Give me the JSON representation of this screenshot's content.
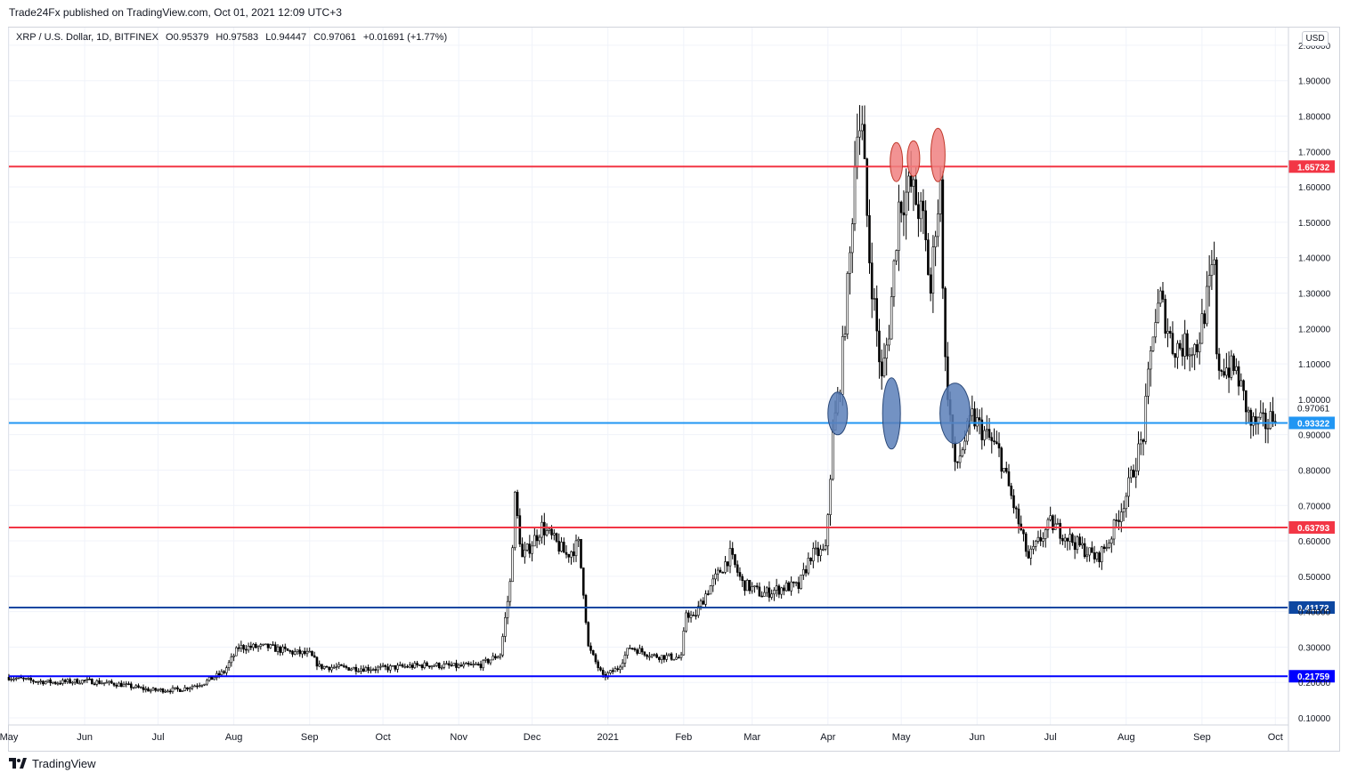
{
  "publisher_line": "Trade24Fx published on TradingView.com, Oct 01, 2021 12:09 UTC+3",
  "legend": {
    "symbol": "XRP / U.S. Dollar, 1D, BITFINEX",
    "open": "O0.95379",
    "high": "H0.97583",
    "low": "L0.94447",
    "close": "C0.97061",
    "change": "+0.01691 (+1.77%)"
  },
  "currency_badge": "USD",
  "footer_brand": "TradingView",
  "icons": [
    "tradingview-logo-icon"
  ],
  "colors": {
    "red_level": "#f23645",
    "light_blue_level": "#2196f3",
    "dark_blue_level": "#0d47a1",
    "blue_level": "#0000ff",
    "red_marker": "#f08080",
    "blue_marker": "#5b7fb8",
    "candle": "#000000"
  },
  "chart_data": {
    "type": "candlestick",
    "symbol": "XRP / U.S. Dollar",
    "interval": "1D",
    "exchange": "BITFINEX",
    "x_range": [
      "2020-05-01",
      "2021-10-06"
    ],
    "ylim": [
      0.08,
      2.05
    ],
    "y_ticks": [
      0.1,
      0.2,
      0.3,
      0.4,
      0.5,
      0.6,
      0.7,
      0.8,
      0.9,
      1.0,
      1.1,
      1.2,
      1.3,
      1.4,
      1.5,
      1.6,
      1.7,
      1.8,
      1.9,
      2.0
    ],
    "y_tick_labels": [
      "0.10000",
      "0.20000",
      "0.30000",
      "0.40000",
      "0.50000",
      "0.60000",
      "0.70000",
      "0.80000",
      "0.90000",
      "1.00000",
      "1.10000",
      "1.20000",
      "1.30000",
      "1.40000",
      "1.50000",
      "1.60000",
      "1.70000",
      "1.80000",
      "1.90000",
      "2.00000"
    ],
    "x_tick_labels": [
      {
        "date": "2020-05-01",
        "label": "May"
      },
      {
        "date": "2020-06-01",
        "label": "Jun"
      },
      {
        "date": "2020-07-01",
        "label": "Jul"
      },
      {
        "date": "2020-08-01",
        "label": "Aug"
      },
      {
        "date": "2020-09-01",
        "label": "Sep"
      },
      {
        "date": "2020-10-01",
        "label": "Oct"
      },
      {
        "date": "2020-11-01",
        "label": "Nov"
      },
      {
        "date": "2020-12-01",
        "label": "Dec"
      },
      {
        "date": "2021-01-01",
        "label": "2021"
      },
      {
        "date": "2021-02-01",
        "label": "Feb"
      },
      {
        "date": "2021-03-01",
        "label": "Mar"
      },
      {
        "date": "2021-04-01",
        "label": "Apr"
      },
      {
        "date": "2021-05-01",
        "label": "May"
      },
      {
        "date": "2021-06-01",
        "label": "Jun"
      },
      {
        "date": "2021-07-01",
        "label": "Jul"
      },
      {
        "date": "2021-08-01",
        "label": "Aug"
      },
      {
        "date": "2021-09-01",
        "label": "Sep"
      },
      {
        "date": "2021-10-01",
        "label": "Oct"
      }
    ],
    "grid": true,
    "last_price": {
      "value": 0.97061,
      "label": "0.97061"
    },
    "horizontal_levels": [
      {
        "value": 1.65732,
        "label": "1.65732",
        "color": "#f23645"
      },
      {
        "value": 0.93322,
        "label": "0.93322",
        "color": "#2196f3"
      },
      {
        "value": 0.63793,
        "label": "0.63793",
        "color": "#f23645"
      },
      {
        "value": 0.41172,
        "label": "0.41172",
        "color": "#0d47a1"
      },
      {
        "value": 0.21759,
        "label": "0.21759",
        "color": "#0000ff"
      }
    ],
    "price_path": [
      [
        "2020-05-01",
        0.215
      ],
      [
        "2020-05-10",
        0.205
      ],
      [
        "2020-05-20",
        0.2
      ],
      [
        "2020-06-01",
        0.205
      ],
      [
        "2020-06-15",
        0.195
      ],
      [
        "2020-06-28",
        0.178
      ],
      [
        "2020-07-10",
        0.18
      ],
      [
        "2020-07-20",
        0.2
      ],
      [
        "2020-07-28",
        0.23
      ],
      [
        "2020-08-03",
        0.3
      ],
      [
        "2020-08-15",
        0.3
      ],
      [
        "2020-08-25",
        0.285
      ],
      [
        "2020-09-01",
        0.28
      ],
      [
        "2020-09-05",
        0.245
      ],
      [
        "2020-09-20",
        0.24
      ],
      [
        "2020-10-01",
        0.24
      ],
      [
        "2020-10-20",
        0.25
      ],
      [
        "2020-11-01",
        0.245
      ],
      [
        "2020-11-10",
        0.25
      ],
      [
        "2020-11-18",
        0.28
      ],
      [
        "2020-11-22",
        0.48
      ],
      [
        "2020-11-24",
        0.72
      ],
      [
        "2020-11-27",
        0.55
      ],
      [
        "2020-12-05",
        0.64
      ],
      [
        "2020-12-15",
        0.56
      ],
      [
        "2020-12-20",
        0.59
      ],
      [
        "2020-12-22",
        0.46
      ],
      [
        "2020-12-24",
        0.3
      ],
      [
        "2020-12-30",
        0.215
      ],
      [
        "2021-01-05",
        0.24
      ],
      [
        "2021-01-10",
        0.3
      ],
      [
        "2021-01-20",
        0.275
      ],
      [
        "2021-01-31",
        0.27
      ],
      [
        "2021-02-02",
        0.4
      ],
      [
        "2021-02-05",
        0.38
      ],
      [
        "2021-02-10",
        0.45
      ],
      [
        "2021-02-20",
        0.56
      ],
      [
        "2021-02-25",
        0.48
      ],
      [
        "2021-03-05",
        0.45
      ],
      [
        "2021-03-15",
        0.47
      ],
      [
        "2021-03-20",
        0.47
      ],
      [
        "2021-03-25",
        0.56
      ],
      [
        "2021-03-31",
        0.57
      ],
      [
        "2021-04-03",
        0.9
      ],
      [
        "2021-04-06",
        1.05
      ],
      [
        "2021-04-10",
        1.4
      ],
      [
        "2021-04-13",
        1.8
      ],
      [
        "2021-04-15",
        1.75
      ],
      [
        "2021-04-18",
        1.4
      ],
      [
        "2021-04-23",
        1.05
      ],
      [
        "2021-04-26",
        1.2
      ],
      [
        "2021-04-30",
        1.55
      ],
      [
        "2021-05-05",
        1.6
      ],
      [
        "2021-05-10",
        1.5
      ],
      [
        "2021-05-13",
        1.3
      ],
      [
        "2021-05-15",
        1.5
      ],
      [
        "2021-05-17",
        1.6
      ],
      [
        "2021-05-19",
        1.1
      ],
      [
        "2021-05-23",
        0.8
      ],
      [
        "2021-05-30",
        0.95
      ],
      [
        "2021-06-10",
        0.85
      ],
      [
        "2021-06-20",
        0.6
      ],
      [
        "2021-06-22",
        0.55
      ],
      [
        "2021-07-01",
        0.65
      ],
      [
        "2021-07-10",
        0.6
      ],
      [
        "2021-07-20",
        0.55
      ],
      [
        "2021-07-25",
        0.6
      ],
      [
        "2021-08-01",
        0.73
      ],
      [
        "2021-08-08",
        0.9
      ],
      [
        "2021-08-12",
        1.2
      ],
      [
        "2021-08-15",
        1.28
      ],
      [
        "2021-08-20",
        1.15
      ],
      [
        "2021-08-30",
        1.15
      ],
      [
        "2021-09-06",
        1.38
      ],
      [
        "2021-09-07",
        1.1
      ],
      [
        "2021-09-15",
        1.08
      ],
      [
        "2021-09-21",
        0.93
      ],
      [
        "2021-09-28",
        0.93
      ],
      [
        "2021-10-01",
        0.97
      ]
    ]
  }
}
